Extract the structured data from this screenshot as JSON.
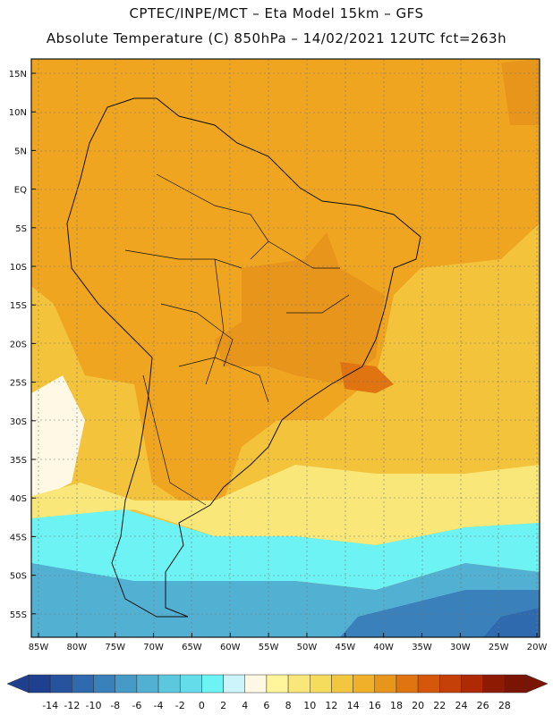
{
  "header": {
    "line1": "CPTEC/INPE/MCT –   Eta Model 15km – GFS",
    "line2": "Absolute Temperature (C) 850hPa – 14/02/2021 12UTC fct=263h"
  },
  "lat_labels": [
    "15N",
    "10N",
    "5N",
    "EQ",
    "5S",
    "10S",
    "15S",
    "20S",
    "25S",
    "30S",
    "35S",
    "40S",
    "45S",
    "50S",
    "55S"
  ],
  "lon_labels": [
    "85W",
    "80W",
    "75W",
    "70W",
    "65W",
    "60W",
    "55W",
    "50W",
    "45W",
    "40W",
    "35W",
    "30W",
    "25W",
    "20W"
  ],
  "colorbar": {
    "colors": [
      "#1f3f8f",
      "#26539e",
      "#2e6aad",
      "#3a80bb",
      "#469ac6",
      "#52b0d2",
      "#5cc8de",
      "#64dcea",
      "#6ef3f4",
      "#cdf3fb",
      "#fff8e4",
      "#fff59a",
      "#f9e879",
      "#f6dc5c",
      "#f2c73f",
      "#f0b02a",
      "#e8951b",
      "#df7411",
      "#d4570c",
      "#c53f08",
      "#ad2a05",
      "#8e1a03",
      "#7a1504"
    ],
    "labels": [
      "-14",
      "-12",
      "-10",
      "-8",
      "-6",
      "-4",
      "-2",
      "0",
      "2",
      "4",
      "6",
      "8",
      "10",
      "12",
      "14",
      "16",
      "18",
      "20",
      "22",
      "24",
      "26",
      "28"
    ]
  },
  "map": {
    "land_color": "#f0a520",
    "ocean_color": "#f3c33c"
  }
}
